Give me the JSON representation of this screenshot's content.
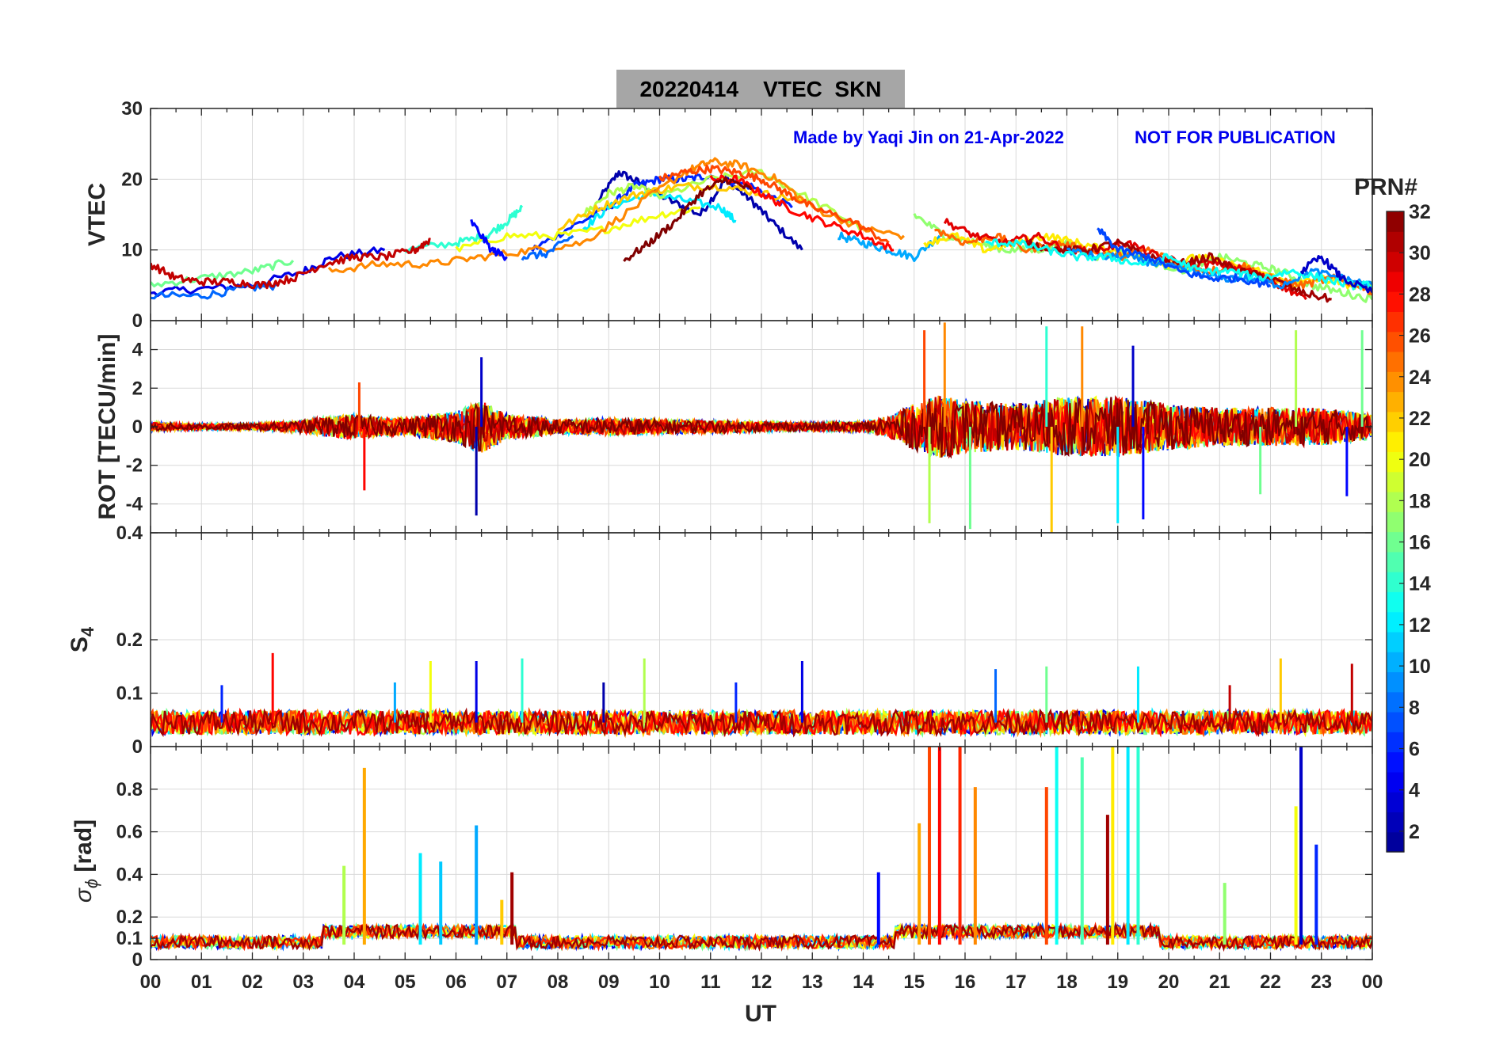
{
  "figure": {
    "title": "20220414    VTEC  SKN",
    "credit_left": "Made by Yaqi Jin on 21-Apr-2022",
    "credit_right": "NOT FOR PUBLICATION",
    "xlabel": "UT"
  },
  "colorbar": {
    "label": "PRN#",
    "ticks": [
      "2",
      "4",
      "6",
      "8",
      "10",
      "12",
      "14",
      "16",
      "18",
      "20",
      "22",
      "24",
      "26",
      "28",
      "30",
      "32"
    ],
    "range": [
      1,
      32
    ],
    "colormap": [
      "#00008f",
      "#0000ff",
      "#0080ff",
      "#00ffff",
      "#80ff80",
      "#ffff00",
      "#ff8000",
      "#ff0000",
      "#800000"
    ]
  },
  "chart_data": [
    {
      "type": "line",
      "panel": "VTEC",
      "ylabel": "VTEC",
      "xlim": [
        0,
        24
      ],
      "ylim": [
        0,
        30
      ],
      "yticks": [
        "10",
        "20",
        "30"
      ],
      "xticks": [
        "00",
        "01",
        "02",
        "03",
        "04",
        "05",
        "06",
        "07",
        "08",
        "09",
        "10",
        "11",
        "12",
        "13",
        "14",
        "15",
        "16",
        "17",
        "18",
        "19",
        "20",
        "21",
        "22",
        "23",
        "00"
      ],
      "grid": true,
      "series": [
        {
          "prn": 2,
          "x": [
            8.8,
            9.2,
            9.6,
            10.2,
            10.8,
            11.3,
            11.8,
            12.2,
            12.8
          ],
          "y": [
            17,
            21,
            19.5,
            17,
            15,
            20,
            17,
            14,
            10
          ]
        },
        {
          "prn": 4,
          "x": [
            0,
            1.0,
            2.0,
            3.0,
            3.6,
            4.6
          ],
          "y": [
            4,
            4.5,
            5,
            7,
            9,
            10
          ]
        },
        {
          "prn": 6,
          "x": [
            7.5,
            8.2,
            9.0,
            9.5,
            10.0,
            10.5,
            11.0,
            11.8,
            12.6
          ],
          "y": [
            10,
            13,
            16,
            19,
            20,
            20,
            20.5,
            19,
            16
          ]
        },
        {
          "prn": 8,
          "x": [
            0,
            1.0,
            1.8,
            2.5
          ],
          "y": [
            3.5,
            3.5,
            4.5,
            5
          ]
        },
        {
          "prn": 10,
          "x": [
            13.5,
            14.0,
            14.5,
            15.0,
            15.5
          ],
          "y": [
            12,
            11,
            10,
            9,
            12
          ]
        },
        {
          "prn": 12,
          "x": [
            8.5,
            9.0,
            9.8,
            10.5,
            11.2,
            11.5
          ],
          "y": [
            13,
            16,
            18,
            17,
            16,
            14
          ]
        },
        {
          "prn": 14,
          "x": [
            5.0,
            6.0,
            6.6,
            7.0,
            7.3
          ],
          "y": [
            10,
            11,
            12,
            14,
            16
          ]
        },
        {
          "prn": 16,
          "x": [
            0,
            1.0,
            2.0,
            2.8
          ],
          "y": [
            5,
            6,
            7,
            8.5
          ]
        },
        {
          "prn": 18,
          "x": [
            8.5,
            9.0,
            9.5,
            10.0,
            11.0,
            12.0,
            13.0,
            14.0
          ],
          "y": [
            15,
            18,
            19,
            17.5,
            20,
            21,
            17,
            13
          ]
        },
        {
          "prn": 20,
          "x": [
            6.0,
            7.0,
            8.0,
            9.0,
            10.0,
            10.8
          ],
          "y": [
            10,
            12,
            12,
            13,
            15,
            16
          ]
        },
        {
          "prn": 22,
          "x": [
            8.0,
            8.8,
            9.6,
            10.4,
            11.2,
            12.0,
            12.8
          ],
          "y": [
            13,
            16,
            18,
            19,
            19,
            18,
            17
          ]
        },
        {
          "prn": 24,
          "x": [
            3.5,
            4.5,
            5.5,
            6.5,
            7.5,
            8.5,
            9.5,
            10.5,
            11.0,
            11.6,
            12.3,
            13.0,
            14.0,
            14.8
          ],
          "y": [
            7,
            8,
            8,
            9,
            10,
            11,
            16,
            21,
            22.5,
            22,
            20,
            16,
            13,
            12
          ]
        },
        {
          "prn": 26,
          "x": [
            10.0,
            10.5,
            11.0,
            11.5,
            12.0,
            12.5,
            13.0,
            13.8,
            14.5
          ],
          "y": [
            20,
            21,
            21.5,
            21,
            20,
            18,
            16,
            14,
            11
          ]
        },
        {
          "prn": 28,
          "x": [
            11.0,
            11.5,
            12.0,
            12.5,
            13.2,
            14.0,
            14.6
          ],
          "y": [
            20,
            20,
            18,
            16,
            14,
            12,
            10
          ]
        },
        {
          "prn": 30,
          "x": [
            0,
            0.5,
            1.0,
            1.6,
            2.2,
            2.8,
            3.4,
            4.0,
            4.6,
            5.2,
            5.5
          ],
          "y": [
            8,
            6,
            5.5,
            5.5,
            5,
            6,
            8,
            9,
            9,
            10,
            11.5
          ]
        },
        {
          "prn": 32,
          "x": [
            9.3,
            9.8,
            10.3,
            10.8,
            11.3,
            11.8
          ],
          "y": [
            8.5,
            11,
            14,
            18,
            20,
            18.5
          ]
        },
        {
          "prn": 5,
          "x": [
            6.3,
            6.7,
            7.0
          ],
          "y": [
            14,
            10,
            9
          ]
        },
        {
          "prn": 8,
          "x": [
            7.3,
            7.8,
            8.3
          ],
          "y": [
            9,
            9.5,
            12
          ]
        },
        {
          "prn": 17,
          "x": [
            15.0,
            15.6,
            16.2,
            16.8,
            17.4,
            18.0,
            18.6,
            19.2,
            19.8,
            20.4,
            21.0,
            21.6,
            22.2,
            22.8,
            23.4,
            24.0
          ],
          "y": [
            15,
            12,
            11,
            10,
            10,
            11,
            9,
            10,
            8,
            7,
            9,
            8,
            7,
            5,
            4,
            3
          ]
        },
        {
          "prn": 21,
          "x": [
            15.2,
            15.8,
            16.4,
            17.0,
            17.6,
            18.2,
            18.8,
            19.4,
            20.0,
            20.6,
            21.2,
            21.8,
            22.4,
            23.0,
            23.6,
            24.0
          ],
          "y": [
            11,
            12,
            10,
            11,
            12,
            11,
            10,
            9,
            8,
            9,
            8,
            7,
            5,
            6,
            5,
            5
          ]
        },
        {
          "prn": 25,
          "x": [
            15.4,
            16.0,
            16.6,
            17.2,
            17.8,
            18.4,
            19.0,
            19.6,
            20.2,
            20.8,
            21.4,
            22.0,
            22.6,
            23.2,
            23.8,
            24.0
          ],
          "y": [
            13,
            11,
            12,
            10,
            11,
            10,
            9,
            10,
            8,
            7,
            8,
            6,
            5,
            6,
            5,
            4
          ]
        },
        {
          "prn": 29,
          "x": [
            15.6,
            16.2,
            16.8,
            17.4,
            18.0,
            18.6,
            19.2,
            19.8,
            20.4,
            21.0,
            21.6,
            22.2,
            22.7
          ],
          "y": [
            14,
            12,
            11,
            12,
            10,
            10,
            11,
            9,
            8,
            8,
            7,
            5,
            3
          ]
        },
        {
          "prn": 31,
          "x": [
            17.2,
            17.8,
            18.4,
            19.0,
            19.6,
            20.2,
            20.8,
            21.4,
            22.0,
            22.6,
            23.2
          ],
          "y": [
            11,
            10,
            10,
            11,
            9,
            8,
            9,
            7,
            6,
            4,
            3
          ]
        },
        {
          "prn": 9,
          "x": [
            18.0,
            18.6,
            19.2,
            19.8,
            20.4,
            21.0,
            21.6,
            22.2,
            22.8,
            23.4,
            24.0
          ],
          "y": [
            10,
            9,
            9,
            8,
            7,
            6,
            6,
            5,
            7,
            6,
            5
          ]
        },
        {
          "prn": 13,
          "x": [
            16.4,
            17.0,
            17.6,
            18.2,
            18.8,
            19.4,
            20.0,
            20.6,
            21.2,
            21.8,
            22.4,
            23.0,
            23.6,
            24.0
          ],
          "y": [
            11,
            11,
            10,
            9,
            9,
            8,
            9,
            7,
            7,
            6,
            7,
            6,
            5,
            5
          ]
        },
        {
          "prn": 3,
          "x": [
            22.6,
            23.0,
            23.4,
            24.0
          ],
          "y": [
            7,
            9,
            6,
            4
          ]
        },
        {
          "prn": 7,
          "x": [
            18.6,
            19.0,
            19.6,
            20.2,
            20.8,
            21.4,
            22.0
          ],
          "y": [
            13,
            10,
            9,
            7,
            6,
            6,
            5
          ]
        }
      ]
    },
    {
      "type": "line",
      "panel": "ROT",
      "ylabel": "ROT [TECU/min]",
      "xlim": [
        0,
        24
      ],
      "ylim": [
        -5.5,
        5.5
      ],
      "yticks": [
        "-4",
        "-2",
        "0",
        "2",
        "4"
      ],
      "grid": true,
      "envelope": {
        "x": [
          0,
          1,
          2,
          3,
          3.5,
          4,
          4.5,
          5,
          5.5,
          6,
          6.5,
          7,
          8,
          9,
          10,
          11,
          12,
          13,
          14,
          14.5,
          15,
          15.5,
          16,
          17,
          18,
          19,
          20,
          21,
          22,
          23,
          24
        ],
        "amp": [
          0.4,
          0.3,
          0.3,
          0.6,
          1.0,
          1.2,
          0.9,
          0.8,
          1.2,
          1.5,
          2.5,
          1.2,
          0.7,
          0.8,
          0.7,
          0.6,
          0.5,
          0.4,
          0.5,
          1.0,
          2.2,
          3.0,
          2.5,
          2.2,
          2.8,
          2.8,
          2.2,
          1.8,
          1.8,
          1.8,
          1.2
        ]
      },
      "spikes": [
        {
          "x": 4.1,
          "y": 2.3,
          "prn": 26
        },
        {
          "x": 4.2,
          "y": -3.3,
          "prn": 28
        },
        {
          "x": 6.4,
          "y": -4.6,
          "prn": 2
        },
        {
          "x": 6.5,
          "y": 3.6,
          "prn": 3
        },
        {
          "x": 15.2,
          "y": 5.0,
          "prn": 26
        },
        {
          "x": 15.3,
          "y": -5.0,
          "prn": 18
        },
        {
          "x": 15.6,
          "y": 5.4,
          "prn": 24
        },
        {
          "x": 16.1,
          "y": -5.3,
          "prn": 16
        },
        {
          "x": 17.6,
          "y": 5.2,
          "prn": 14
        },
        {
          "x": 17.7,
          "y": -5.5,
          "prn": 22
        },
        {
          "x": 18.3,
          "y": 5.2,
          "prn": 24
        },
        {
          "x": 19.0,
          "y": -5.0,
          "prn": 12
        },
        {
          "x": 19.3,
          "y": 4.2,
          "prn": 3
        },
        {
          "x": 19.5,
          "y": -4.8,
          "prn": 5
        },
        {
          "x": 22.5,
          "y": 5.0,
          "prn": 18
        },
        {
          "x": 23.8,
          "y": 5.0,
          "prn": 16
        },
        {
          "x": 21.8,
          "y": -3.5,
          "prn": 16
        },
        {
          "x": 23.5,
          "y": -3.6,
          "prn": 5
        }
      ]
    },
    {
      "type": "line",
      "panel": "S4",
      "ylabel": "S4",
      "xlim": [
        0,
        24
      ],
      "ylim": [
        0,
        0.4
      ],
      "yticks": [
        "0",
        "0.1",
        "0.2",
        "0.4"
      ],
      "grid": true,
      "baseline": 0.045,
      "spikes": [
        {
          "x": 2.4,
          "y": 0.175,
          "prn": 28
        },
        {
          "x": 5.5,
          "y": 0.16,
          "prn": 20
        },
        {
          "x": 6.4,
          "y": 0.16,
          "prn": 4
        },
        {
          "x": 7.3,
          "y": 0.165,
          "prn": 14
        },
        {
          "x": 9.7,
          "y": 0.165,
          "prn": 18
        },
        {
          "x": 12.8,
          "y": 0.16,
          "prn": 4
        },
        {
          "x": 16.6,
          "y": 0.145,
          "prn": 8
        },
        {
          "x": 17.6,
          "y": 0.15,
          "prn": 16
        },
        {
          "x": 19.4,
          "y": 0.15,
          "prn": 12
        },
        {
          "x": 22.2,
          "y": 0.165,
          "prn": 22
        },
        {
          "x": 23.6,
          "y": 0.155,
          "prn": 30
        },
        {
          "x": 1.4,
          "y": 0.115,
          "prn": 6
        },
        {
          "x": 4.8,
          "y": 0.12,
          "prn": 10
        },
        {
          "x": 8.9,
          "y": 0.12,
          "prn": 2
        },
        {
          "x": 11.5,
          "y": 0.12,
          "prn": 6
        },
        {
          "x": 21.2,
          "y": 0.115,
          "prn": 30
        }
      ]
    },
    {
      "type": "line",
      "panel": "sigma_phi",
      "ylabel": "σ ϕ [rad]",
      "xlim": [
        0,
        24
      ],
      "ylim": [
        0,
        1.0
      ],
      "yticks": [
        "0",
        "0.1",
        "0.2",
        "0.4",
        "0.6",
        "0.8"
      ],
      "grid": true,
      "baseline": 0.07,
      "spikes": [
        {
          "x": 3.8,
          "y": 0.44,
          "prn": 18
        },
        {
          "x": 4.2,
          "y": 0.9,
          "prn": 23
        },
        {
          "x": 5.3,
          "y": 0.5,
          "prn": 12
        },
        {
          "x": 5.7,
          "y": 0.46,
          "prn": 11
        },
        {
          "x": 6.4,
          "y": 0.63,
          "prn": 10
        },
        {
          "x": 7.1,
          "y": 0.41,
          "prn": 31
        },
        {
          "x": 14.3,
          "y": 0.41,
          "prn": 5
        },
        {
          "x": 15.1,
          "y": 0.64,
          "prn": 23
        },
        {
          "x": 15.3,
          "y": 1.0,
          "prn": 26
        },
        {
          "x": 15.5,
          "y": 1.0,
          "prn": 28
        },
        {
          "x": 15.9,
          "y": 1.0,
          "prn": 27
        },
        {
          "x": 16.2,
          "y": 0.81,
          "prn": 24
        },
        {
          "x": 17.6,
          "y": 0.81,
          "prn": 26
        },
        {
          "x": 17.8,
          "y": 1.0,
          "prn": 13
        },
        {
          "x": 18.3,
          "y": 0.95,
          "prn": 15
        },
        {
          "x": 18.8,
          "y": 0.68,
          "prn": 31
        },
        {
          "x": 18.9,
          "y": 1.0,
          "prn": 21
        },
        {
          "x": 19.2,
          "y": 1.0,
          "prn": 12
        },
        {
          "x": 19.4,
          "y": 1.0,
          "prn": 14
        },
        {
          "x": 22.6,
          "y": 1.0,
          "prn": 3
        },
        {
          "x": 22.5,
          "y": 0.72,
          "prn": 20
        },
        {
          "x": 22.9,
          "y": 0.54,
          "prn": 6
        },
        {
          "x": 21.1,
          "y": 0.36,
          "prn": 17
        },
        {
          "x": 6.9,
          "y": 0.28,
          "prn": 22
        }
      ]
    }
  ]
}
